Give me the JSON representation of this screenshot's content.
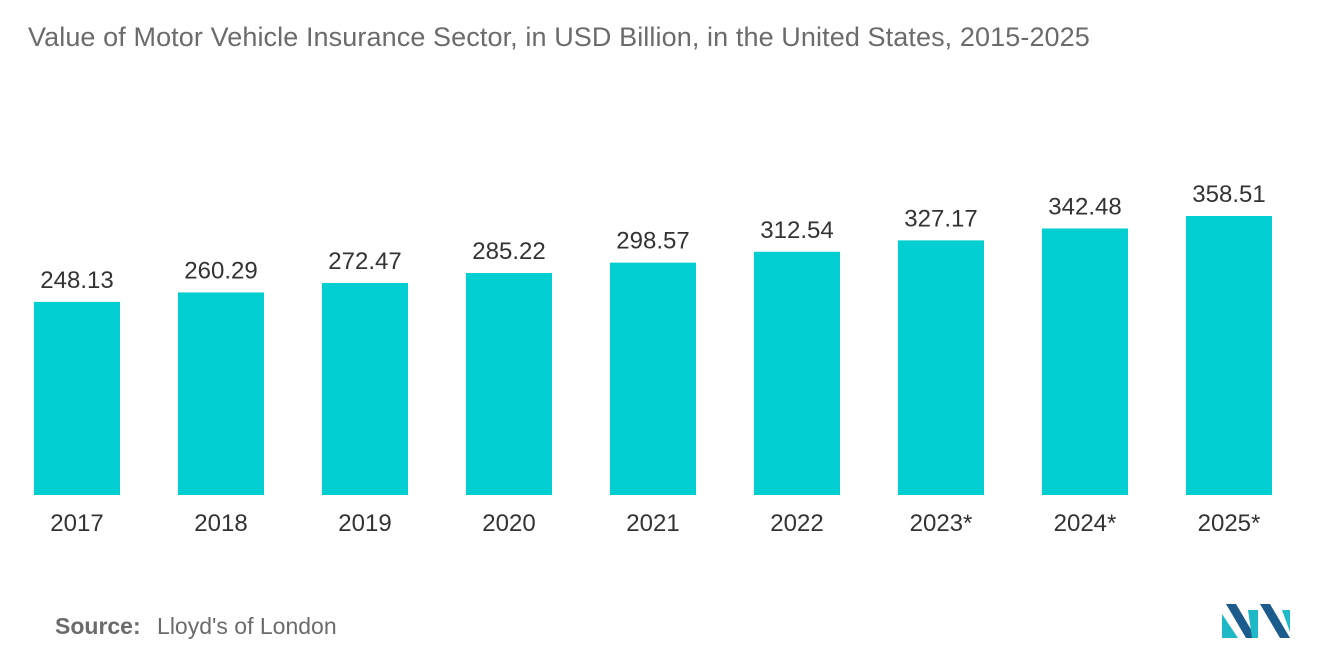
{
  "title": "Value of Motor Vehicle Insurance Sector, in USD Billion, in the United States, 2015-2025",
  "source_label": "Source:",
  "source_value": "Lloyd's of London",
  "colors": {
    "bar": "#00ced1",
    "text": "#333333",
    "muted": "#6b6b6b",
    "logo_dark": "#1b5c8c",
    "logo_light": "#1fb8c6"
  },
  "chart_data": {
    "type": "bar",
    "categories": [
      "2017",
      "2018",
      "2019",
      "2020",
      "2021",
      "2022",
      "2023*",
      "2024*",
      "2025*"
    ],
    "values": [
      248.13,
      260.29,
      272.47,
      285.22,
      298.57,
      312.54,
      327.17,
      342.48,
      358.51
    ],
    "data_labels": [
      "248.13",
      "260.29",
      "272.47",
      "285.22",
      "298.57",
      "312.54",
      "327.17",
      "342.48",
      "358.51"
    ],
    "title": "Value of Motor Vehicle Insurance Sector, in USD Billion, in the United States, 2015-2025",
    "xlabel": "",
    "ylabel": "",
    "ylim": [
      0,
      358.51
    ],
    "grid": false,
    "legend": "none"
  }
}
